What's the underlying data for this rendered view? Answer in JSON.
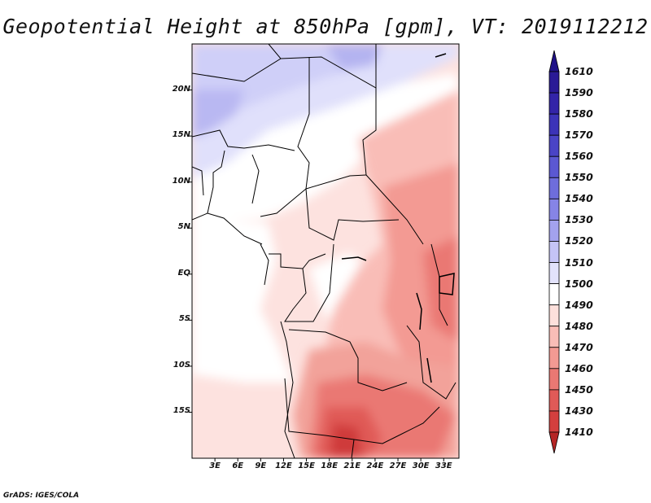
{
  "title": "Geopotential Height at 850hPa [gpm], VT: 2019112212",
  "credit": "GrADS: IGES/COLA",
  "map": {
    "variable": "Geopotential Height",
    "level": "850hPa",
    "units": "gpm",
    "valid_time": "2019112212",
    "lon_range": [
      0,
      35
    ],
    "lat_range": [
      -20,
      25
    ],
    "lat_ticks": [
      {
        "value": 20,
        "label": "20N"
      },
      {
        "value": 15,
        "label": "15N"
      },
      {
        "value": 10,
        "label": "10N"
      },
      {
        "value": 5,
        "label": "5N"
      },
      {
        "value": 0,
        "label": "EQ"
      },
      {
        "value": -5,
        "label": "5S"
      },
      {
        "value": -10,
        "label": "10S"
      },
      {
        "value": -15,
        "label": "15S"
      }
    ],
    "lon_ticks": [
      {
        "value": 3,
        "label": "3E"
      },
      {
        "value": 6,
        "label": "6E"
      },
      {
        "value": 9,
        "label": "9E"
      },
      {
        "value": 12,
        "label": "12E"
      },
      {
        "value": 15,
        "label": "15E"
      },
      {
        "value": 18,
        "label": "18E"
      },
      {
        "value": 21,
        "label": "21E"
      },
      {
        "value": 24,
        "label": "24E"
      },
      {
        "value": 27,
        "label": "27E"
      },
      {
        "value": 30,
        "label": "30E"
      },
      {
        "value": 33,
        "label": "33E"
      }
    ]
  },
  "colorbar": {
    "levels": [
      {
        "label": "1610",
        "color": "#2a1a96"
      },
      {
        "label": "1590",
        "color": "#3324a8"
      },
      {
        "label": "1580",
        "color": "#3c33b8"
      },
      {
        "label": "1570",
        "color": "#4a44c6"
      },
      {
        "label": "1560",
        "color": "#5b58d2"
      },
      {
        "label": "1550",
        "color": "#6e6ddc"
      },
      {
        "label": "1540",
        "color": "#8684e6"
      },
      {
        "label": "1530",
        "color": "#a3a2ee"
      },
      {
        "label": "1520",
        "color": "#c5c4f6"
      },
      {
        "label": "1510",
        "color": "#e2e2fb"
      },
      {
        "label": "1500",
        "color": "#ffffff"
      },
      {
        "label": "1490",
        "color": "#fde0dc"
      },
      {
        "label": "1480",
        "color": "#f9bdb7"
      },
      {
        "label": "1470",
        "color": "#f39a93"
      },
      {
        "label": "1460",
        "color": "#ea7873"
      },
      {
        "label": "1450",
        "color": "#e05a57"
      },
      {
        "label": "1430",
        "color": "#d43f3e"
      },
      {
        "label": "1410",
        "color": "#c82d2d"
      }
    ],
    "top_arrow_color": "#1f1288",
    "bottom_arrow_color": "#b52525"
  }
}
